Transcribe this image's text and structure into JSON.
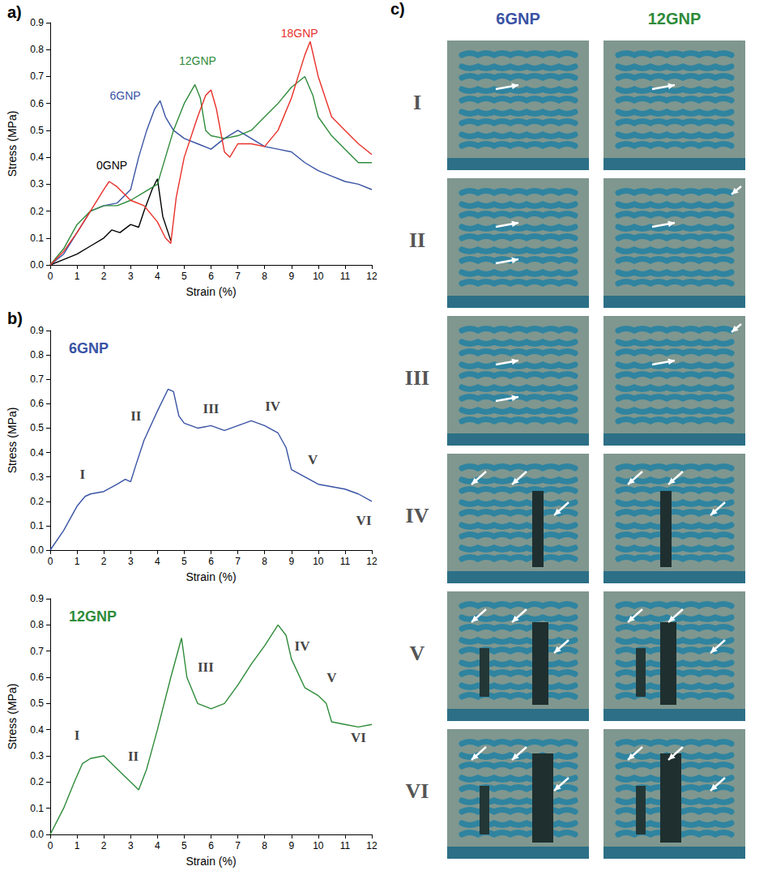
{
  "chart_data": [
    {
      "type": "line",
      "panel": "a)",
      "x_label": "Strain (%)",
      "y_label": "Stress (MPa)",
      "xlim": [
        0,
        12
      ],
      "ylim": [
        0,
        0.9
      ],
      "xticks": [
        0,
        1,
        2,
        3,
        4,
        5,
        6,
        7,
        8,
        9,
        10,
        11,
        12
      ],
      "yticks": [
        {
          "value": 0,
          "label": "0.0"
        },
        0.1,
        0.2,
        0.3,
        0.4,
        0.5,
        0.6,
        0.7,
        0.8,
        0.9
      ],
      "grid": false,
      "series": [
        {
          "name": "0GNP",
          "color": "#000000",
          "name_at": [
            2.3,
            0.37
          ],
          "x": [
            0,
            0.5,
            1,
            1.5,
            2,
            2.3,
            2.6,
            3,
            3.3,
            3.5,
            3.8,
            4,
            4.1,
            4.2,
            4.4,
            4.5
          ],
          "values": [
            0,
            0.02,
            0.04,
            0.07,
            0.1,
            0.13,
            0.12,
            0.15,
            0.14,
            0.2,
            0.28,
            0.32,
            0.25,
            0.18,
            0.12,
            0.09
          ]
        },
        {
          "name": "6GNP",
          "color": "#3953a4",
          "name_at": [
            2.8,
            0.63
          ],
          "x": [
            0,
            0.5,
            1,
            1.5,
            2,
            2.5,
            3,
            3.3,
            3.6,
            3.9,
            4.1,
            4.3,
            4.6,
            5,
            5.5,
            6,
            6.5,
            7,
            7.5,
            8,
            8.5,
            9,
            9.5,
            10,
            10.5,
            11,
            11.5,
            12
          ],
          "values": [
            0,
            0.04,
            0.12,
            0.2,
            0.22,
            0.23,
            0.28,
            0.4,
            0.5,
            0.58,
            0.61,
            0.55,
            0.5,
            0.47,
            0.45,
            0.43,
            0.47,
            0.5,
            0.47,
            0.44,
            0.43,
            0.42,
            0.38,
            0.35,
            0.33,
            0.31,
            0.3,
            0.28
          ]
        },
        {
          "name": "12GNP",
          "color": "#2e8b3a",
          "name_at": [
            5.5,
            0.76
          ],
          "x": [
            0,
            0.5,
            1,
            1.5,
            2,
            2.5,
            3,
            3.5,
            4,
            4.3,
            4.6,
            5,
            5.4,
            5.6,
            5.8,
            6,
            6.5,
            7,
            7.5,
            8,
            8.5,
            9,
            9.5,
            9.8,
            10,
            10.5,
            11,
            11.5,
            12
          ],
          "values": [
            0,
            0.06,
            0.15,
            0.2,
            0.22,
            0.22,
            0.24,
            0.27,
            0.3,
            0.4,
            0.5,
            0.6,
            0.67,
            0.62,
            0.5,
            0.48,
            0.47,
            0.48,
            0.5,
            0.55,
            0.6,
            0.66,
            0.7,
            0.63,
            0.55,
            0.48,
            0.43,
            0.38,
            0.38
          ]
        },
        {
          "name": "18GNP",
          "color": "#e8302a",
          "name_at": [
            9.3,
            0.86
          ],
          "x": [
            0,
            0.5,
            1,
            1.5,
            2,
            2.2,
            2.5,
            3,
            3.5,
            4,
            4.3,
            4.5,
            4.7,
            5,
            5.5,
            5.8,
            6,
            6.2,
            6.5,
            6.7,
            7,
            7.5,
            8,
            8.5,
            9,
            9.5,
            9.7,
            10,
            10.5,
            11,
            11.5,
            12
          ],
          "values": [
            0,
            0.05,
            0.12,
            0.2,
            0.28,
            0.31,
            0.29,
            0.24,
            0.22,
            0.16,
            0.1,
            0.08,
            0.25,
            0.4,
            0.55,
            0.63,
            0.65,
            0.58,
            0.42,
            0.4,
            0.45,
            0.45,
            0.44,
            0.5,
            0.62,
            0.78,
            0.83,
            0.7,
            0.55,
            0.5,
            0.45,
            0.41
          ]
        }
      ]
    },
    {
      "type": "line",
      "panel": "b)",
      "title": "6GNP",
      "x_label": "Strain (%)",
      "y_label": "Stress (MPa)",
      "xlim": [
        0,
        12
      ],
      "ylim": [
        0,
        0.9
      ],
      "xticks": [
        0,
        1,
        2,
        3,
        4,
        5,
        6,
        7,
        8,
        9,
        10,
        11,
        12
      ],
      "yticks": [
        {
          "value": 0,
          "label": "0.0"
        },
        0.1,
        0.2,
        0.3,
        0.4,
        0.5,
        0.6,
        0.7,
        0.8,
        0.9
      ],
      "grid": false,
      "annotations": [
        {
          "text": "I",
          "x": 1.2,
          "y": 0.31
        },
        {
          "text": "II",
          "x": 3.2,
          "y": 0.55
        },
        {
          "text": "III",
          "x": 6,
          "y": 0.58
        },
        {
          "text": "IV",
          "x": 8.3,
          "y": 0.59
        },
        {
          "text": "V",
          "x": 9.8,
          "y": 0.37
        },
        {
          "text": "VI",
          "x": 11.7,
          "y": 0.12
        }
      ],
      "series": [
        {
          "name": "6GNP",
          "color": "#3953a4",
          "x": [
            0,
            0.5,
            1,
            1.3,
            1.5,
            2,
            2.5,
            2.8,
            3,
            3.2,
            3.5,
            4,
            4.4,
            4.6,
            4.8,
            5,
            5.5,
            6,
            6.5,
            7,
            7.5,
            8,
            8.5,
            8.8,
            9,
            9.5,
            10,
            10.5,
            11,
            11.5,
            12
          ],
          "values": [
            0,
            0.08,
            0.18,
            0.22,
            0.23,
            0.24,
            0.27,
            0.29,
            0.28,
            0.35,
            0.45,
            0.57,
            0.66,
            0.65,
            0.55,
            0.52,
            0.5,
            0.51,
            0.49,
            0.51,
            0.53,
            0.51,
            0.48,
            0.42,
            0.33,
            0.3,
            0.27,
            0.26,
            0.25,
            0.23,
            0.2
          ]
        }
      ]
    },
    {
      "type": "line",
      "title": "12GNP",
      "x_label": "Strain (%)",
      "y_label": "Stress (MPa)",
      "xlim": [
        0,
        12
      ],
      "ylim": [
        0,
        0.9
      ],
      "xticks": [
        0,
        1,
        2,
        3,
        4,
        5,
        6,
        7,
        8,
        9,
        10,
        11,
        12
      ],
      "yticks": [
        {
          "value": 0,
          "label": "0.0"
        },
        0.1,
        0.2,
        0.3,
        0.4,
        0.5,
        0.6,
        0.7,
        0.8,
        0.9
      ],
      "grid": false,
      "annotations": [
        {
          "text": "I",
          "x": 1.0,
          "y": 0.38
        },
        {
          "text": "II",
          "x": 3.1,
          "y": 0.3
        },
        {
          "text": "III",
          "x": 5.8,
          "y": 0.64
        },
        {
          "text": "IV",
          "x": 9.4,
          "y": 0.72
        },
        {
          "text": "V",
          "x": 10.5,
          "y": 0.6
        },
        {
          "text": "VI",
          "x": 11.5,
          "y": 0.37
        }
      ],
      "series": [
        {
          "name": "12GNP",
          "color": "#2e8b3a",
          "x": [
            0,
            0.5,
            0.9,
            1.2,
            1.5,
            2,
            2.5,
            3,
            3.3,
            3.6,
            4,
            4.5,
            4.9,
            5.1,
            5.5,
            6,
            6.5,
            7,
            7.5,
            8,
            8.5,
            8.8,
            9,
            9.5,
            10,
            10.3,
            10.5,
            11,
            11.5,
            12
          ],
          "values": [
            0,
            0.1,
            0.2,
            0.27,
            0.29,
            0.3,
            0.25,
            0.2,
            0.17,
            0.25,
            0.4,
            0.6,
            0.75,
            0.6,
            0.5,
            0.48,
            0.5,
            0.57,
            0.65,
            0.72,
            0.8,
            0.76,
            0.67,
            0.56,
            0.53,
            0.5,
            0.43,
            0.42,
            0.41,
            0.42
          ]
        }
      ]
    }
  ],
  "photo_grid": {
    "panel": "c)",
    "columns": [
      {
        "name": "6GNP",
        "color": "#3953a4"
      },
      {
        "name": "12GNP",
        "color": "#2e8b3a"
      }
    ],
    "rows": [
      "I",
      "II",
      "III",
      "IV",
      "V",
      "VI"
    ]
  }
}
